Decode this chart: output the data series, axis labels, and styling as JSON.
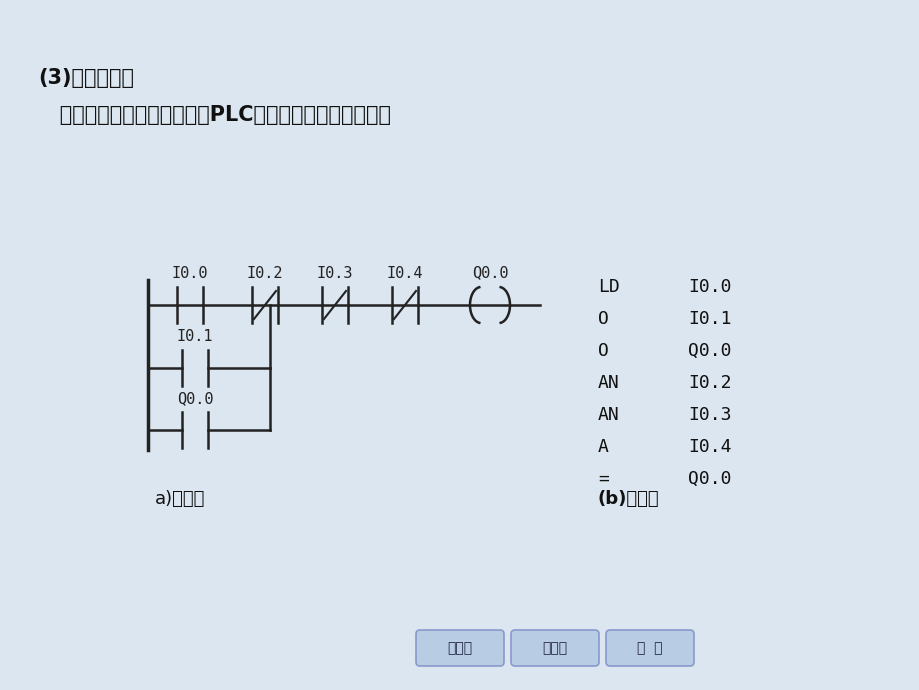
{
  "bg_color": "#dce6f0",
  "title1": "(3)程序设计。",
  "title2": "   三相异步电动机两地控制的PLC控制电路程序及语句表。",
  "label_a": "a)梯形图",
  "label_b": "(b)语句表",
  "instruction_col1": [
    "LD",
    "O",
    "O",
    "AN",
    "AN",
    "A",
    "="
  ],
  "instruction_col2": [
    "I0.0",
    "I0.1",
    "Q0.0",
    "I0.2",
    "I0.3",
    "I0.4",
    "Q0.0"
  ],
  "contact_labels_top": [
    "I0.0",
    "I0.2",
    "I0.3",
    "I0.4",
    "Q0.0"
  ],
  "parallel_labels": [
    "I0.1",
    "Q0.0"
  ],
  "nav_buttons": [
    "上一页",
    "下一页",
    "退  出"
  ],
  "line_color": "#222222",
  "text_color": "#111111",
  "title_fontsize": 15,
  "body_fontsize": 13,
  "diagram_fontsize": 11,
  "inst_fontsize": 13
}
